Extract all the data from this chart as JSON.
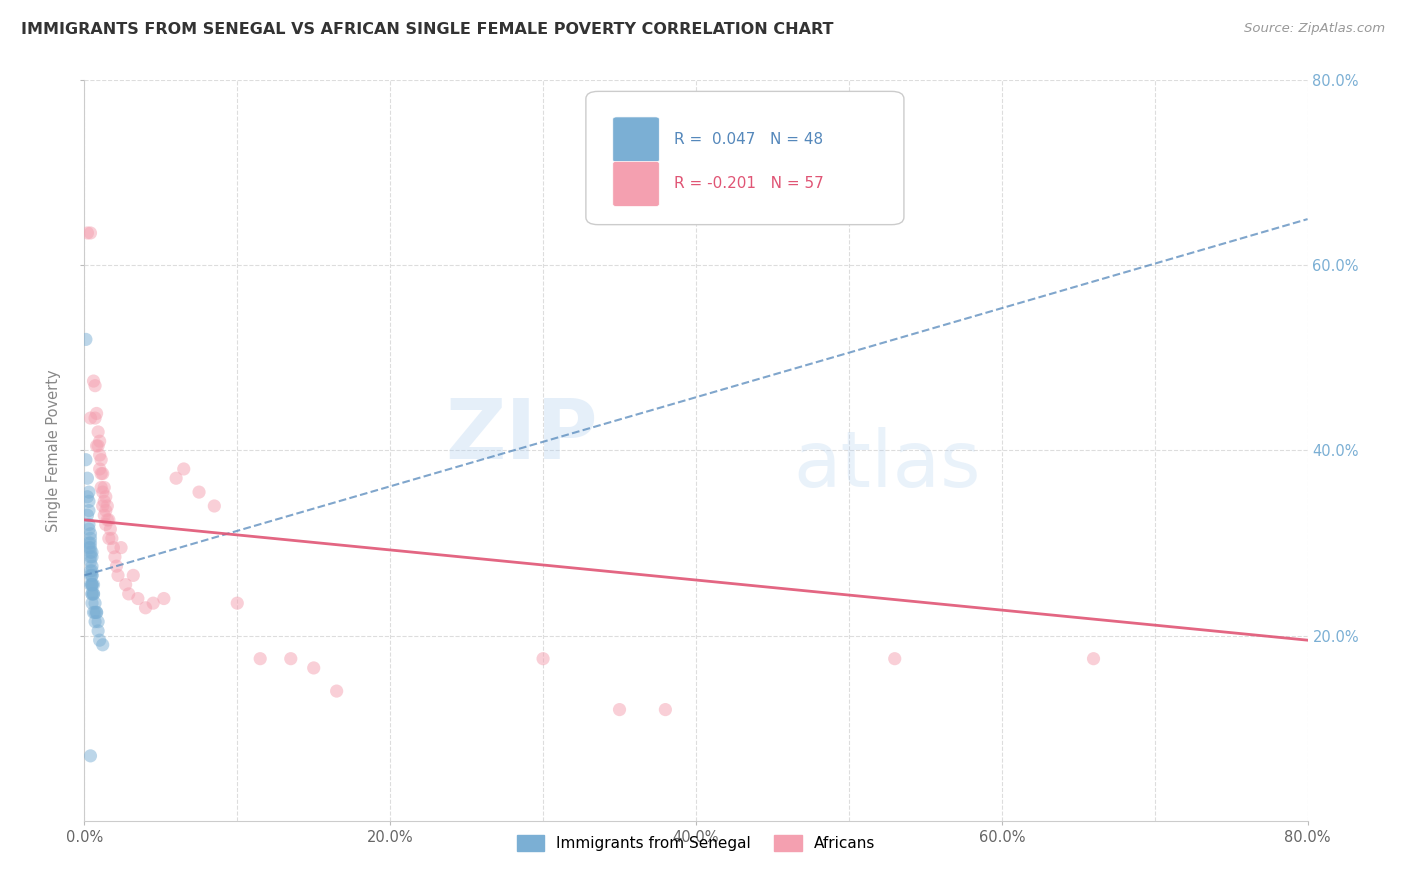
{
  "title": "IMMIGRANTS FROM SENEGAL VS AFRICAN SINGLE FEMALE POVERTY CORRELATION CHART",
  "source": "Source: ZipAtlas.com",
  "ylabel": "Single Female Poverty",
  "xlim": [
    0.0,
    0.8
  ],
  "ylim": [
    0.0,
    0.8
  ],
  "xticks": [
    0.0,
    0.2,
    0.4,
    0.6,
    0.8
  ],
  "yticks_right_blue": [
    0.2,
    0.4,
    0.6,
    0.8
  ],
  "yticks_right_pink": [
    0.2,
    0.4,
    0.6,
    0.8
  ],
  "xticklabels": [
    "0.0%",
    "20.0%",
    "40.0%",
    "60.0%",
    "80.0%"
  ],
  "yticklabels_blue": [
    "20.0%",
    "40.0%",
    "60.0%",
    "80.0%"
  ],
  "yticklabels_pink": [
    "20.0%",
    "40.0%",
    "60.0%",
    "80.0%"
  ],
  "legend_label1": "Immigrants from Senegal",
  "legend_label2": "Africans",
  "blue_color": "#7BAFD4",
  "pink_color": "#F4A0B0",
  "blue_line_color": "#5588BB",
  "pink_line_color": "#E05575",
  "blue_scatter": [
    [
      0.001,
      0.52
    ],
    [
      0.001,
      0.39
    ],
    [
      0.002,
      0.37
    ],
    [
      0.002,
      0.35
    ],
    [
      0.002,
      0.33
    ],
    [
      0.003,
      0.355
    ],
    [
      0.003,
      0.335
    ],
    [
      0.003,
      0.315
    ],
    [
      0.003,
      0.295
    ],
    [
      0.003,
      0.345
    ],
    [
      0.003,
      0.32
    ],
    [
      0.003,
      0.3
    ],
    [
      0.004,
      0.31
    ],
    [
      0.004,
      0.295
    ],
    [
      0.004,
      0.28
    ],
    [
      0.004,
      0.305
    ],
    [
      0.004,
      0.29
    ],
    [
      0.004,
      0.27
    ],
    [
      0.004,
      0.3
    ],
    [
      0.004,
      0.285
    ],
    [
      0.004,
      0.265
    ],
    [
      0.004,
      0.255
    ],
    [
      0.005,
      0.29
    ],
    [
      0.005,
      0.275
    ],
    [
      0.005,
      0.255
    ],
    [
      0.005,
      0.285
    ],
    [
      0.005,
      0.265
    ],
    [
      0.005,
      0.245
    ],
    [
      0.005,
      0.27
    ],
    [
      0.005,
      0.255
    ],
    [
      0.005,
      0.245
    ],
    [
      0.005,
      0.265
    ],
    [
      0.005,
      0.255
    ],
    [
      0.005,
      0.235
    ],
    [
      0.006,
      0.255
    ],
    [
      0.006,
      0.245
    ],
    [
      0.006,
      0.245
    ],
    [
      0.006,
      0.225
    ],
    [
      0.007,
      0.235
    ],
    [
      0.007,
      0.225
    ],
    [
      0.007,
      0.215
    ],
    [
      0.008,
      0.225
    ],
    [
      0.008,
      0.225
    ],
    [
      0.009,
      0.215
    ],
    [
      0.009,
      0.205
    ],
    [
      0.01,
      0.195
    ],
    [
      0.012,
      0.19
    ],
    [
      0.004,
      0.07
    ]
  ],
  "pink_scatter": [
    [
      0.002,
      0.635
    ],
    [
      0.004,
      0.635
    ],
    [
      0.004,
      0.435
    ],
    [
      0.006,
      0.475
    ],
    [
      0.007,
      0.435
    ],
    [
      0.007,
      0.47
    ],
    [
      0.008,
      0.44
    ],
    [
      0.008,
      0.405
    ],
    [
      0.009,
      0.42
    ],
    [
      0.009,
      0.405
    ],
    [
      0.01,
      0.395
    ],
    [
      0.01,
      0.38
    ],
    [
      0.01,
      0.41
    ],
    [
      0.011,
      0.39
    ],
    [
      0.011,
      0.375
    ],
    [
      0.011,
      0.36
    ],
    [
      0.012,
      0.375
    ],
    [
      0.012,
      0.355
    ],
    [
      0.012,
      0.34
    ],
    [
      0.013,
      0.36
    ],
    [
      0.013,
      0.345
    ],
    [
      0.013,
      0.33
    ],
    [
      0.014,
      0.35
    ],
    [
      0.014,
      0.335
    ],
    [
      0.014,
      0.32
    ],
    [
      0.015,
      0.34
    ],
    [
      0.015,
      0.325
    ],
    [
      0.016,
      0.325
    ],
    [
      0.016,
      0.305
    ],
    [
      0.017,
      0.315
    ],
    [
      0.018,
      0.305
    ],
    [
      0.019,
      0.295
    ],
    [
      0.02,
      0.285
    ],
    [
      0.021,
      0.275
    ],
    [
      0.022,
      0.265
    ],
    [
      0.024,
      0.295
    ],
    [
      0.027,
      0.255
    ],
    [
      0.029,
      0.245
    ],
    [
      0.032,
      0.265
    ],
    [
      0.035,
      0.24
    ],
    [
      0.04,
      0.23
    ],
    [
      0.045,
      0.235
    ],
    [
      0.052,
      0.24
    ],
    [
      0.06,
      0.37
    ],
    [
      0.065,
      0.38
    ],
    [
      0.075,
      0.355
    ],
    [
      0.085,
      0.34
    ],
    [
      0.1,
      0.235
    ],
    [
      0.115,
      0.175
    ],
    [
      0.135,
      0.175
    ],
    [
      0.15,
      0.165
    ],
    [
      0.165,
      0.14
    ],
    [
      0.3,
      0.175
    ],
    [
      0.35,
      0.12
    ],
    [
      0.38,
      0.12
    ],
    [
      0.53,
      0.175
    ],
    [
      0.66,
      0.175
    ]
  ],
  "blue_trend_x": [
    0.0,
    0.8
  ],
  "blue_trend_y": [
    0.265,
    0.65
  ],
  "pink_trend_x": [
    0.0,
    0.8
  ],
  "pink_trend_y": [
    0.325,
    0.195
  ],
  "grid_color": "#DDDDDD",
  "background_color": "#FFFFFF",
  "minor_xticks": [
    0.0,
    0.1,
    0.2,
    0.3,
    0.4,
    0.5,
    0.6,
    0.7,
    0.8
  ]
}
